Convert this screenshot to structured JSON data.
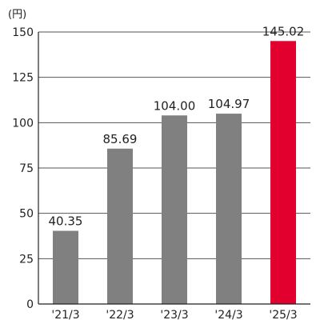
{
  "chart_data": {
    "type": "bar",
    "unit_label": "(円)",
    "categories": [
      "'21/3",
      "'22/3",
      "'23/3",
      "'24/3",
      "'25/3"
    ],
    "values": [
      40.35,
      85.69,
      104.0,
      104.97,
      145.02
    ],
    "value_labels": [
      "40.35",
      "85.69",
      "104.00",
      "104.97",
      "145.02"
    ],
    "ylim": [
      0,
      150
    ],
    "yticks": [
      0,
      25,
      50,
      75,
      100,
      125,
      150
    ],
    "grid": true,
    "bar_colors": [
      "#808080",
      "#808080",
      "#808080",
      "#808080",
      "#e2002f"
    ]
  }
}
